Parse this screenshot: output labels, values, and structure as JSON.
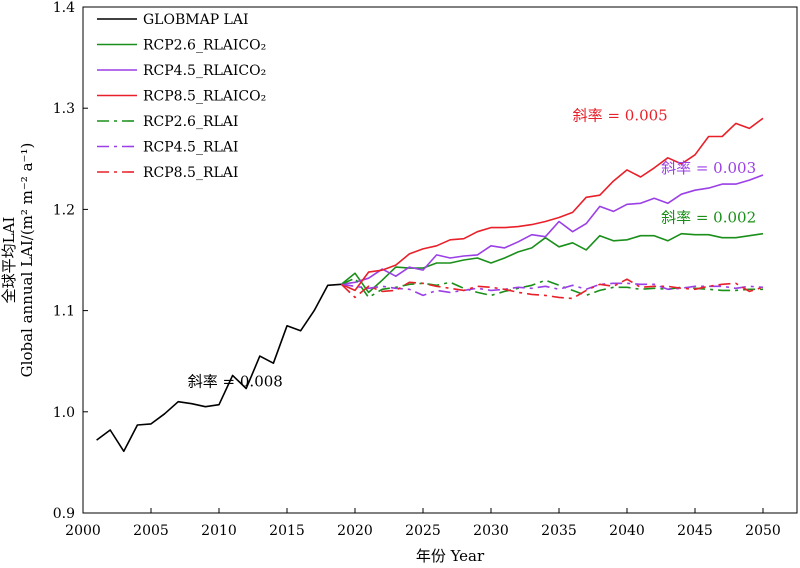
{
  "chart_data": {
    "type": "line",
    "xlabel": "年份 Year",
    "ylabel_cn": "全球平均LAI",
    "ylabel_en": "Global annual LAI/(m² m⁻² a⁻¹)",
    "xlim": [
      2000,
      2052
    ],
    "ylim": [
      0.9,
      1.4
    ],
    "xticks": [
      2000,
      2005,
      2010,
      2015,
      2020,
      2025,
      2030,
      2035,
      2040,
      2045,
      2050
    ],
    "yticks": [
      0.9,
      1.0,
      1.1,
      1.2,
      1.3,
      1.4
    ],
    "ytick_labels": [
      "0.9",
      "1.0",
      "1.1",
      "1.2",
      "1.3",
      "1.4"
    ],
    "grid": false,
    "legend_position": "top-left",
    "series": [
      {
        "name": "GLOBMAP LAI",
        "color": "#000000",
        "dash": "solid",
        "x": [
          2001,
          2002,
          2003,
          2004,
          2005,
          2006,
          2007,
          2008,
          2009,
          2010,
          2011,
          2012,
          2013,
          2014,
          2015,
          2016,
          2017,
          2018,
          2019
        ],
        "values": [
          0.972,
          0.982,
          0.961,
          0.987,
          0.988,
          0.998,
          1.01,
          1.008,
          1.005,
          1.007,
          1.036,
          1.023,
          1.055,
          1.048,
          1.085,
          1.08,
          1.1,
          1.125,
          1.126
        ]
      },
      {
        "name": "RCP2.6_RLAICO₂",
        "color": "#1a8f1a",
        "dash": "solid",
        "x": [
          2019,
          2020,
          2021,
          2022,
          2023,
          2024,
          2025,
          2026,
          2027,
          2028,
          2029,
          2030,
          2031,
          2032,
          2033,
          2034,
          2035,
          2036,
          2037,
          2038,
          2039,
          2040,
          2041,
          2042,
          2043,
          2044,
          2045,
          2046,
          2047,
          2048,
          2049,
          2050
        ],
        "values": [
          1.126,
          1.137,
          1.118,
          1.13,
          1.143,
          1.142,
          1.142,
          1.147,
          1.147,
          1.15,
          1.152,
          1.147,
          1.152,
          1.158,
          1.162,
          1.172,
          1.163,
          1.167,
          1.16,
          1.174,
          1.169,
          1.17,
          1.174,
          1.174,
          1.169,
          1.176,
          1.175,
          1.175,
          1.172,
          1.172,
          1.174,
          1.176
        ]
      },
      {
        "name": "RCP4.5_RLAICO₂",
        "color": "#9b3fe6",
        "dash": "solid",
        "x": [
          2019,
          2020,
          2021,
          2022,
          2023,
          2024,
          2025,
          2026,
          2027,
          2028,
          2029,
          2030,
          2031,
          2032,
          2033,
          2034,
          2035,
          2036,
          2037,
          2038,
          2039,
          2040,
          2041,
          2042,
          2043,
          2044,
          2045,
          2046,
          2047,
          2048,
          2049,
          2050
        ],
        "values": [
          1.126,
          1.128,
          1.132,
          1.141,
          1.134,
          1.143,
          1.14,
          1.155,
          1.152,
          1.154,
          1.155,
          1.164,
          1.162,
          1.168,
          1.175,
          1.173,
          1.188,
          1.178,
          1.186,
          1.203,
          1.198,
          1.205,
          1.206,
          1.211,
          1.206,
          1.215,
          1.219,
          1.221,
          1.225,
          1.225,
          1.229,
          1.234
        ]
      },
      {
        "name": "RCP8.5_RLAICO₂",
        "color": "#e8202a",
        "dash": "solid",
        "x": [
          2019,
          2020,
          2021,
          2022,
          2023,
          2024,
          2025,
          2026,
          2027,
          2028,
          2029,
          2030,
          2031,
          2032,
          2033,
          2034,
          2035,
          2036,
          2037,
          2038,
          2039,
          2040,
          2041,
          2042,
          2043,
          2044,
          2045,
          2046,
          2047,
          2048,
          2049,
          2050
        ],
        "values": [
          1.126,
          1.12,
          1.138,
          1.14,
          1.145,
          1.156,
          1.161,
          1.164,
          1.17,
          1.171,
          1.178,
          1.182,
          1.182,
          1.183,
          1.185,
          1.188,
          1.192,
          1.197,
          1.212,
          1.214,
          1.228,
          1.239,
          1.232,
          1.241,
          1.251,
          1.245,
          1.254,
          1.272,
          1.272,
          1.285,
          1.28,
          1.29
        ]
      },
      {
        "name": "RCP2.6_RLAI",
        "color": "#1a8f1a",
        "dash": "dashdot",
        "x": [
          2019,
          2020,
          2021,
          2022,
          2023,
          2024,
          2025,
          2026,
          2027,
          2028,
          2029,
          2030,
          2031,
          2032,
          2033,
          2034,
          2035,
          2036,
          2037,
          2038,
          2039,
          2040,
          2041,
          2042,
          2043,
          2044,
          2045,
          2046,
          2047,
          2048,
          2049,
          2050
        ],
        "values": [
          1.126,
          1.132,
          1.113,
          1.121,
          1.123,
          1.126,
          1.127,
          1.125,
          1.128,
          1.122,
          1.118,
          1.115,
          1.119,
          1.122,
          1.125,
          1.13,
          1.125,
          1.12,
          1.115,
          1.12,
          1.123,
          1.123,
          1.121,
          1.122,
          1.121,
          1.123,
          1.122,
          1.121,
          1.12,
          1.12,
          1.121,
          1.121
        ]
      },
      {
        "name": "RCP4.5_RLAI",
        "color": "#9b3fe6",
        "dash": "dashdot",
        "x": [
          2019,
          2020,
          2021,
          2022,
          2023,
          2024,
          2025,
          2026,
          2027,
          2028,
          2029,
          2030,
          2031,
          2032,
          2033,
          2034,
          2035,
          2036,
          2037,
          2038,
          2039,
          2040,
          2041,
          2042,
          2043,
          2044,
          2045,
          2046,
          2047,
          2048,
          2049,
          2050
        ],
        "values": [
          1.126,
          1.124,
          1.122,
          1.124,
          1.122,
          1.121,
          1.115,
          1.12,
          1.118,
          1.12,
          1.122,
          1.12,
          1.121,
          1.123,
          1.122,
          1.124,
          1.121,
          1.125,
          1.121,
          1.126,
          1.127,
          1.127,
          1.126,
          1.126,
          1.121,
          1.122,
          1.124,
          1.124,
          1.124,
          1.122,
          1.124,
          1.123
        ]
      },
      {
        "name": "RCP8.5_RLAI",
        "color": "#e8202a",
        "dash": "dashdot",
        "x": [
          2019,
          2020,
          2021,
          2022,
          2023,
          2024,
          2025,
          2026,
          2027,
          2028,
          2029,
          2030,
          2031,
          2032,
          2033,
          2034,
          2035,
          2036,
          2037,
          2038,
          2039,
          2040,
          2041,
          2042,
          2043,
          2044,
          2045,
          2046,
          2047,
          2048,
          2049,
          2050
        ],
        "values": [
          1.126,
          1.113,
          1.124,
          1.119,
          1.12,
          1.128,
          1.127,
          1.124,
          1.122,
          1.12,
          1.124,
          1.123,
          1.121,
          1.118,
          1.116,
          1.115,
          1.113,
          1.112,
          1.12,
          1.126,
          1.124,
          1.131,
          1.123,
          1.124,
          1.124,
          1.122,
          1.121,
          1.124,
          1.126,
          1.127,
          1.119,
          1.123
        ]
      }
    ],
    "annotations": [
      {
        "text": "斜率 = 0.008",
        "x": 2011.2,
        "y": 1.025,
        "color": "#000000"
      },
      {
        "text": "斜率 = 0.005",
        "x": 2039.5,
        "y": 1.288,
        "color": "#e8202a"
      },
      {
        "text": "斜率 = 0.003",
        "x": 2046.0,
        "y": 1.236,
        "color": "#9b3fe6"
      },
      {
        "text": "斜率 = 0.002",
        "x": 2046.0,
        "y": 1.187,
        "color": "#1a8f1a"
      }
    ]
  }
}
